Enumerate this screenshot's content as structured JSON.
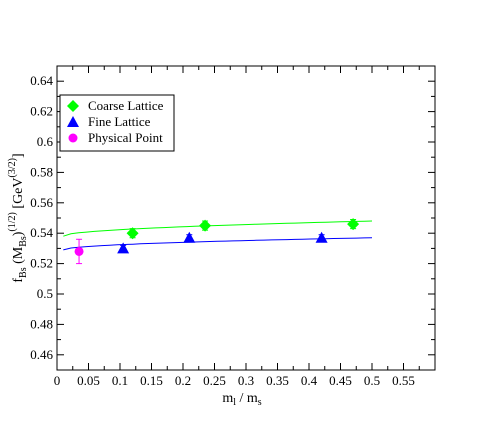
{
  "chart_data": {
    "type": "scatter",
    "xlabel": "m_l / m_s",
    "ylabel": "f_Bs (M_Bs)^(1/2) [GeV^(3/2)]",
    "xlim": [
      0,
      0.6
    ],
    "ylim": [
      0.45,
      0.65
    ],
    "x_ticks": [
      "0",
      "0.05",
      "0.1",
      "0.15",
      "0.2",
      "0.25",
      "0.3",
      "0.35",
      "0.4",
      "0.45",
      "0.5",
      "0.55"
    ],
    "y_ticks": [
      "0.46",
      "0.48",
      "0.5",
      "0.52",
      "0.54",
      "0.56",
      "0.58",
      "0.6",
      "0.62",
      "0.64"
    ],
    "grid": false,
    "legend_position": "top-left",
    "series": [
      {
        "name": "Coarse Lattice",
        "marker": "diamond",
        "color": "#00ff00",
        "points": [
          {
            "x": 0.12,
            "y": 0.54,
            "err": 0.003
          },
          {
            "x": 0.235,
            "y": 0.545,
            "err": 0.003
          },
          {
            "x": 0.47,
            "y": 0.546,
            "err": 0.003
          }
        ]
      },
      {
        "name": "Fine Lattice",
        "marker": "triangle",
        "color": "#0000ff",
        "points": [
          {
            "x": 0.105,
            "y": 0.53,
            "err": 0.002
          },
          {
            "x": 0.21,
            "y": 0.537,
            "err": 0.002
          },
          {
            "x": 0.42,
            "y": 0.537,
            "err": 0.002
          }
        ]
      },
      {
        "name": "Physical Point",
        "marker": "circle",
        "color": "#ff00ff",
        "points": [
          {
            "x": 0.035,
            "y": 0.528,
            "err": 0.008
          }
        ]
      }
    ],
    "fits": [
      {
        "color": "#00ff00",
        "x": [
          0.01,
          0.5
        ],
        "y": [
          0.538,
          0.548
        ]
      },
      {
        "color": "#0000ff",
        "x": [
          0.01,
          0.5
        ],
        "y": [
          0.529,
          0.537
        ]
      }
    ]
  }
}
